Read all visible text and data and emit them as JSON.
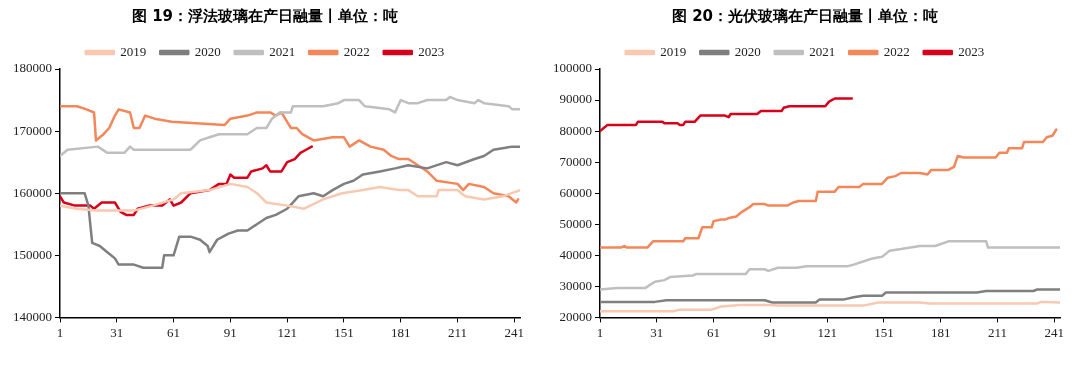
{
  "chart_data": [
    {
      "type": "line",
      "title": "图 19：浮法玻璃在产日融量丨单位：吨",
      "legend": "top",
      "marker": "none",
      "grid": false,
      "xlim": [
        1,
        244
      ],
      "xticks": [
        1,
        31,
        61,
        91,
        121,
        151,
        181,
        211,
        241
      ],
      "ylim": [
        140000,
        180000
      ],
      "yticks": [
        140000,
        150000,
        160000,
        170000,
        180000
      ],
      "series": [
        {
          "name": "2019",
          "color": "#f8c8b0",
          "x": [
            1,
            10,
            20,
            40,
            50,
            61,
            65,
            80,
            91,
            100,
            105,
            110,
            121,
            130,
            140,
            150,
            161,
            170,
            180,
            185,
            190,
            200,
            201,
            211,
            215,
            225,
            235,
            244
          ],
          "values": [
            158000,
            157500,
            157200,
            157200,
            158000,
            159000,
            160000,
            160500,
            161500,
            161000,
            160000,
            158500,
            158000,
            157500,
            159000,
            160000,
            160500,
            161000,
            160500,
            160500,
            159500,
            159500,
            160500,
            160500,
            159500,
            159000,
            159500,
            160500
          ]
        },
        {
          "name": "2020",
          "color": "#7f7f7f",
          "x": [
            1,
            10,
            14,
            16,
            18,
            22,
            26,
            30,
            32,
            40,
            45,
            55,
            56,
            61,
            64,
            70,
            75,
            79,
            80,
            84,
            90,
            95,
            100,
            105,
            110,
            115,
            121,
            127,
            135,
            140,
            145,
            151,
            156,
            161,
            170,
            178,
            185,
            195,
            205,
            211,
            220,
            225,
            230,
            240,
            244
          ],
          "values": [
            160000,
            160000,
            160000,
            158000,
            152000,
            151500,
            150500,
            149500,
            148500,
            148500,
            148000,
            148000,
            150000,
            150000,
            153000,
            153000,
            152500,
            151500,
            150500,
            152500,
            153500,
            154000,
            154000,
            155000,
            156000,
            156500,
            157500,
            159500,
            160000,
            159500,
            160500,
            161500,
            162000,
            163000,
            163500,
            164000,
            164500,
            164000,
            165000,
            164500,
            165500,
            166000,
            167000,
            167500,
            167500
          ]
        },
        {
          "name": "2021",
          "color": "#bfbfbf",
          "x": [
            1,
            5,
            21,
            26,
            35,
            38,
            40,
            70,
            75,
            80,
            85,
            100,
            105,
            110,
            113,
            117,
            123,
            124,
            140,
            148,
            151,
            159,
            162,
            175,
            178,
            181,
            185,
            190,
            195,
            205,
            207,
            211,
            220,
            222,
            225,
            238,
            240,
            244
          ],
          "values": [
            166000,
            167000,
            167500,
            166500,
            166500,
            167500,
            167000,
            167000,
            168500,
            169000,
            169500,
            169500,
            170500,
            170500,
            172000,
            173000,
            173000,
            174000,
            174000,
            174500,
            175000,
            175000,
            174000,
            173500,
            173000,
            175000,
            174500,
            174500,
            175000,
            175000,
            175500,
            175000,
            174500,
            175000,
            174500,
            174000,
            173500,
            173500
          ]
        },
        {
          "name": "2022",
          "color": "#f4875a",
          "x": [
            1,
            10,
            15,
            19,
            20,
            24,
            27,
            30,
            32,
            38,
            40,
            43,
            46,
            51,
            60,
            88,
            91,
            100,
            105,
            112,
            115,
            118,
            121,
            123,
            126,
            129,
            135,
            145,
            151,
            154,
            159,
            165,
            172,
            176,
            180,
            185,
            190,
            195,
            200,
            211,
            214,
            217,
            225,
            230,
            238,
            242,
            243
          ],
          "values": [
            174000,
            174000,
            173500,
            173000,
            168500,
            169500,
            170500,
            172500,
            173500,
            173000,
            170500,
            170500,
            172500,
            172000,
            171500,
            171000,
            172000,
            172500,
            173000,
            173000,
            172500,
            173000,
            171500,
            170500,
            170500,
            169500,
            168500,
            169000,
            169000,
            167500,
            168500,
            167500,
            167000,
            166000,
            165500,
            165500,
            164500,
            163500,
            162000,
            161500,
            160500,
            161500,
            161000,
            160000,
            159500,
            158500,
            159000
          ]
        },
        {
          "name": "2023",
          "color": "#d9001b",
          "x": [
            1,
            3,
            9,
            17,
            19,
            23,
            30,
            33,
            36,
            40,
            42,
            48,
            55,
            59,
            61,
            65,
            70,
            80,
            85,
            89,
            91,
            93,
            100,
            102,
            108,
            110,
            112,
            118,
            121,
            125,
            128,
            131,
            134
          ],
          "values": [
            159500,
            158500,
            158000,
            158000,
            157500,
            158500,
            158500,
            157000,
            156500,
            156500,
            157500,
            158000,
            158000,
            159000,
            158000,
            158500,
            160000,
            160500,
            161500,
            161500,
            163000,
            162500,
            162500,
            163500,
            164000,
            164500,
            163500,
            163500,
            165000,
            165500,
            166500,
            167000,
            167500
          ]
        }
      ]
    },
    {
      "type": "line",
      "title": "图 20：光伏玻璃在产日融量丨单位：吨",
      "legend": "top",
      "marker": "none",
      "grid": false,
      "xlim": [
        1,
        244
      ],
      "xticks": [
        1,
        31,
        61,
        91,
        121,
        151,
        181,
        211,
        241
      ],
      "ylim": [
        20000,
        100000
      ],
      "yticks": [
        20000,
        30000,
        40000,
        50000,
        60000,
        70000,
        80000,
        90000,
        100000
      ],
      "series": [
        {
          "name": "2019",
          "color": "#f8c8b0",
          "x": [
            1,
            40,
            43,
            60,
            65,
            75,
            91,
            95,
            140,
            148,
            170,
            175,
            232,
            234,
            244
          ],
          "values": [
            22000,
            22000,
            22500,
            22500,
            23500,
            24000,
            24000,
            23800,
            23800,
            24800,
            24800,
            24500,
            24500,
            25000,
            24800
          ]
        },
        {
          "name": "2020",
          "color": "#7f7f7f",
          "x": [
            1,
            30,
            36,
            88,
            92,
            115,
            117,
            130,
            135,
            140,
            150,
            152,
            200,
            205,
            230,
            232,
            244
          ],
          "values": [
            25000,
            25000,
            25500,
            25500,
            24800,
            24800,
            25800,
            25800,
            26500,
            27000,
            27000,
            28000,
            28000,
            28500,
            28500,
            29000,
            29000
          ]
        },
        {
          "name": "2021",
          "color": "#bfbfbf",
          "x": [
            1,
            10,
            25,
            30,
            35,
            38,
            50,
            52,
            78,
            80,
            88,
            90,
            95,
            105,
            110,
            132,
            135,
            140,
            145,
            150,
            154,
            160,
            170,
            178,
            185,
            205,
            206,
            244
          ],
          "values": [
            29000,
            29500,
            29500,
            31500,
            32000,
            33000,
            33500,
            34000,
            34000,
            35500,
            35500,
            35000,
            36000,
            36000,
            36500,
            36500,
            37000,
            38000,
            39000,
            39500,
            41500,
            42000,
            43000,
            43000,
            44500,
            44500,
            42500,
            42500
          ]
        },
        {
          "name": "2022",
          "color": "#f4875a",
          "x": [
            1,
            12,
            14,
            15,
            26,
            29,
            45,
            46,
            53,
            55,
            60,
            61,
            65,
            67,
            69,
            73,
            76,
            80,
            82,
            88,
            90,
            100,
            103,
            106,
            115,
            116,
            125,
            127,
            138,
            140,
            150,
            153,
            157,
            160,
            170,
            174,
            176,
            185,
            188,
            190,
            193,
            210,
            212,
            216,
            217,
            224,
            225,
            235,
            237,
            240,
            242
          ],
          "values": [
            42500,
            42500,
            43000,
            42500,
            42500,
            44500,
            44500,
            45500,
            45500,
            49000,
            49000,
            51000,
            51500,
            51500,
            52000,
            52500,
            54000,
            55500,
            56500,
            56500,
            56000,
            56000,
            57000,
            57500,
            57500,
            60500,
            60500,
            62000,
            62000,
            63000,
            63000,
            65000,
            65500,
            66500,
            66500,
            66000,
            67500,
            67500,
            68500,
            72000,
            71500,
            71500,
            73000,
            73000,
            74500,
            74500,
            76500,
            76500,
            78000,
            78500,
            80500
          ]
        },
        {
          "name": "2023",
          "color": "#d9001b",
          "x": [
            1,
            3,
            5,
            20,
            21,
            34,
            35,
            42,
            43,
            45,
            46,
            51,
            54,
            67,
            69,
            70,
            84,
            86,
            97,
            98,
            101,
            120,
            122,
            125,
            134
          ],
          "values": [
            80000,
            81000,
            82000,
            82000,
            83000,
            83000,
            82500,
            82500,
            82000,
            82000,
            83000,
            83000,
            85000,
            85000,
            84500,
            85500,
            85500,
            86500,
            86500,
            87500,
            88000,
            88000,
            89500,
            90500,
            90500
          ]
        }
      ]
    }
  ]
}
